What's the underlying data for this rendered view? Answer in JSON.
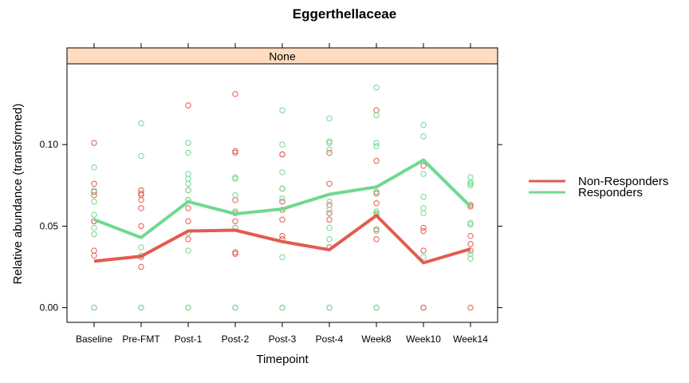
{
  "chart_data": {
    "type": "line",
    "title": "Eggerthellaceae",
    "panel": "None",
    "xlabel": "Timepoint",
    "ylabel": "Relative abundance (transformed)",
    "categories": [
      "Baseline",
      "Pre-FMT",
      "Post-1",
      "Post-2",
      "Post-3",
      "Post-4",
      "Week8",
      "Week10",
      "Week14"
    ],
    "yticks": [
      0.0,
      0.05,
      0.1
    ],
    "ytick_labels": [
      "0.00",
      "0.05",
      "0.10"
    ],
    "ylim": [
      -0.009,
      0.1495
    ],
    "grid": false,
    "legend_position": "right",
    "series": [
      {
        "name": "Non-Responders",
        "color": "#e35b4f",
        "mean": [
          0.0285,
          0.0315,
          0.047,
          0.0475,
          0.0405,
          0.0355,
          0.0565,
          0.0275,
          0.036
        ],
        "points": [
          [
            0.101,
            0.076,
            0.071,
            0.069,
            0.053,
            0.053,
            0.035,
            0.032,
            0.0
          ],
          [
            0.072,
            0.07,
            0.069,
            0.066,
            0.061,
            0.05,
            0.031,
            0.025,
            0.0
          ],
          [
            0.124,
            0.072,
            0.066,
            0.061,
            0.053,
            0.046,
            0.042,
            0.0
          ],
          [
            0.131,
            0.096,
            0.095,
            0.066,
            0.058,
            0.053,
            0.049,
            0.034,
            0.033,
            0.0
          ],
          [
            0.094,
            0.094,
            0.073,
            0.065,
            0.06,
            0.054,
            0.044,
            0.042,
            0.0
          ],
          [
            0.095,
            0.076,
            0.063,
            0.058,
            0.054,
            0.037,
            0.0
          ],
          [
            0.121,
            0.09,
            0.071,
            0.07,
            0.064,
            0.057,
            0.048,
            0.042,
            0.0
          ],
          [
            0.087,
            0.049,
            0.047,
            0.035,
            0.0,
            0.0
          ],
          [
            0.063,
            0.062,
            0.044,
            0.039,
            0.035,
            0.0
          ]
        ]
      },
      {
        "name": "Responders",
        "color": "#6fd98f",
        "mean": [
          0.054,
          0.043,
          0.065,
          0.0575,
          0.0605,
          0.0695,
          0.074,
          0.0905,
          0.062
        ],
        "points": [
          [
            0.086,
            0.072,
            0.065,
            0.057,
            0.049,
            0.045,
            0.0
          ],
          [
            0.113,
            0.093,
            0.037,
            0.032,
            0.0
          ],
          [
            0.101,
            0.095,
            0.082,
            0.079,
            0.076,
            0.072,
            0.066,
            0.046,
            0.035,
            0.0
          ],
          [
            0.08,
            0.079,
            0.069,
            0.059,
            0.049,
            0.0
          ],
          [
            0.121,
            0.1,
            0.083,
            0.073,
            0.067,
            0.031,
            0.0
          ],
          [
            0.116,
            0.102,
            0.101,
            0.097,
            0.065,
            0.06,
            0.049,
            0.042,
            0.0
          ],
          [
            0.135,
            0.118,
            0.101,
            0.099,
            0.071,
            0.059,
            0.058,
            0.047,
            0.0
          ],
          [
            0.112,
            0.105,
            0.082,
            0.068,
            0.061,
            0.058,
            0.031
          ],
          [
            0.08,
            0.077,
            0.076,
            0.075,
            0.052,
            0.051,
            0.033,
            0.03
          ]
        ]
      }
    ]
  }
}
